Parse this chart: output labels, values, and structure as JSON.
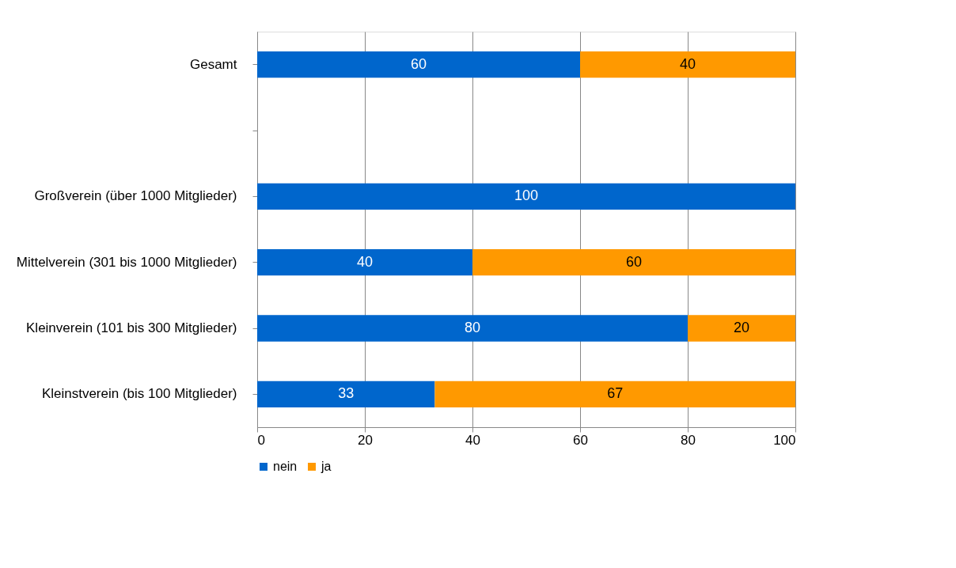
{
  "chart_data": {
    "type": "bar",
    "orientation": "horizontal",
    "stacked": true,
    "categories": [
      "Gesamt",
      null,
      "Großverein (über 1000 Mitglieder)",
      "Mittelverein (301 bis 1000 Mitglieder)",
      "Kleinverein (101 bis 300 Mitglieder)",
      "Kleinstverein (bis 100 Mitglieder)"
    ],
    "series": [
      {
        "name": "nein",
        "color": "#0066cc",
        "values": [
          60,
          null,
          100,
          40,
          80,
          33
        ]
      },
      {
        "name": "ja",
        "color": "#ff9900",
        "values": [
          40,
          null,
          null,
          60,
          20,
          67
        ]
      }
    ],
    "xlim": [
      0,
      100
    ],
    "xticks": [
      0,
      20,
      40,
      60,
      80,
      100
    ],
    "grid": "x",
    "legend": "bottom",
    "data_labels": true
  }
}
